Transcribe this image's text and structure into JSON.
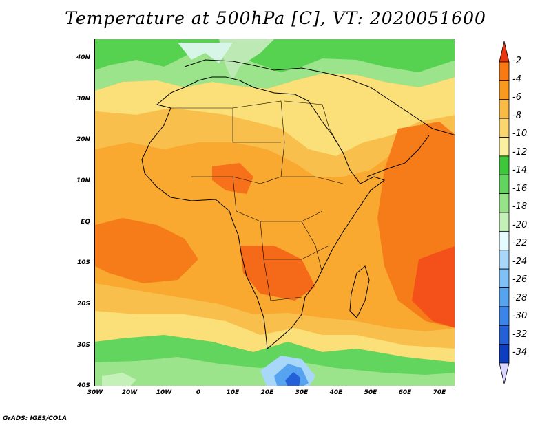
{
  "title": "Temperature at 500hPa [C], VT: 2020051600",
  "credit": "GrADS: IGES/COLA",
  "map": {
    "region": "Africa",
    "lon_range": [
      -30,
      75
    ],
    "lat_range": [
      -40,
      45
    ],
    "lat_labels": [
      "40N",
      "30N",
      "20N",
      "10N",
      "EQ",
      "10S",
      "20S",
      "30S",
      "40S"
    ],
    "lat_values": [
      40,
      30,
      20,
      10,
      0,
      -10,
      -20,
      -30,
      -40
    ],
    "lon_labels": [
      "30W",
      "20W",
      "10W",
      "0",
      "10E",
      "20E",
      "30E",
      "40E",
      "50E",
      "60E",
      "70E"
    ],
    "lon_values": [
      -30,
      -20,
      -10,
      0,
      10,
      20,
      30,
      40,
      50,
      60,
      70
    ]
  },
  "colorbar": {
    "labels": [
      "-2",
      "-4",
      "-6",
      "-8",
      "-10",
      "-12",
      "-14",
      "-16",
      "-18",
      "-20",
      "-22",
      "-24",
      "-26",
      "-28",
      "-30",
      "-32",
      "-34"
    ],
    "colors": [
      "#f43d0f",
      "#fa7a12",
      "#f99a1e",
      "#f9bb43",
      "#fbd66e",
      "#fbf0a0",
      "#3fc73b",
      "#62d55e",
      "#96e487",
      "#c4f1b8",
      "#e5fcfe",
      "#a8d7fa",
      "#7fc0f6",
      "#56a4ef",
      "#3b84ea",
      "#2460d8",
      "#0d3ec0",
      "#061a80"
    ],
    "top_arrow_color": "#e8380d",
    "bottom_arrow_color": "#d9d6ff"
  }
}
